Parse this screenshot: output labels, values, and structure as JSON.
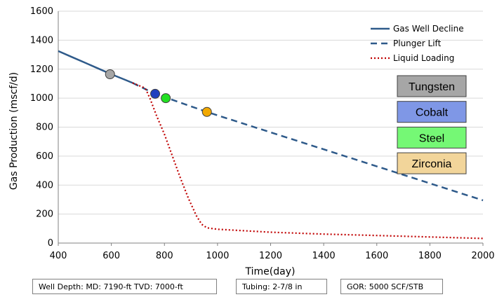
{
  "chart_data": {
    "type": "line",
    "xlabel": "Time(day)",
    "ylabel": "Gas Production (mscf/d)",
    "xlim": [
      400,
      2000
    ],
    "ylim": [
      0,
      1600
    ],
    "xticks": [
      400,
      600,
      800,
      1000,
      1200,
      1400,
      1600,
      1800,
      2000
    ],
    "yticks": [
      0,
      200,
      400,
      600,
      800,
      1000,
      1200,
      1400,
      1600
    ],
    "legend_position": "top-right",
    "series": [
      {
        "name": "Gas Well Decline",
        "style": "solid",
        "color": "#2E5A8A",
        "x": [
          400,
          450,
          500,
          550,
          600,
          650,
          680
        ],
        "y": [
          1325,
          1285,
          1245,
          1205,
          1165,
          1128,
          1105
        ]
      },
      {
        "name": "Plunger Lift",
        "style": "dashed",
        "color": "#2E5A8A",
        "x": [
          680,
          765,
          960,
          2000
        ],
        "y": [
          1105,
          1030,
          905,
          295
        ]
      },
      {
        "name": "Liquid Loading",
        "style": "dotted",
        "color": "#C00000",
        "x": [
          680,
          700,
          720,
          730,
          745,
          770,
          800,
          830,
          860,
          890,
          920,
          940,
          960,
          980,
          1000,
          1200,
          1400,
          1600,
          1800,
          2000
        ],
        "y": [
          1105,
          1090,
          1075,
          1060,
          1000,
          880,
          750,
          600,
          450,
          310,
          190,
          130,
          105,
          100,
          95,
          75,
          62,
          52,
          42,
          32
        ]
      }
    ],
    "markers": [
      {
        "name": "Tungsten",
        "x": 595,
        "y": 1165,
        "color": "#A6A6A6"
      },
      {
        "name": "Cobalt",
        "x": 765,
        "y": 1030,
        "color": "#1F3FBF"
      },
      {
        "name": "Steel",
        "x": 805,
        "y": 1000,
        "color": "#22E022"
      },
      {
        "name": "Zirconia",
        "x": 960,
        "y": 905,
        "color": "#F2A900"
      }
    ],
    "material_legend": [
      {
        "label": "Tungsten",
        "color": "#A6A6A6"
      },
      {
        "label": "Cobalt",
        "color": "#7F97E6"
      },
      {
        "label": "Steel",
        "color": "#75F875"
      },
      {
        "label": "Zirconia",
        "color": "#F2D59A"
      }
    ]
  },
  "info": {
    "well_depth": "Well Depth: MD: 7190-ft TVD: 7000-ft",
    "tubing": "Tubing: 2-7/8 in",
    "gor": "GOR: 5000 SCF/STB"
  }
}
